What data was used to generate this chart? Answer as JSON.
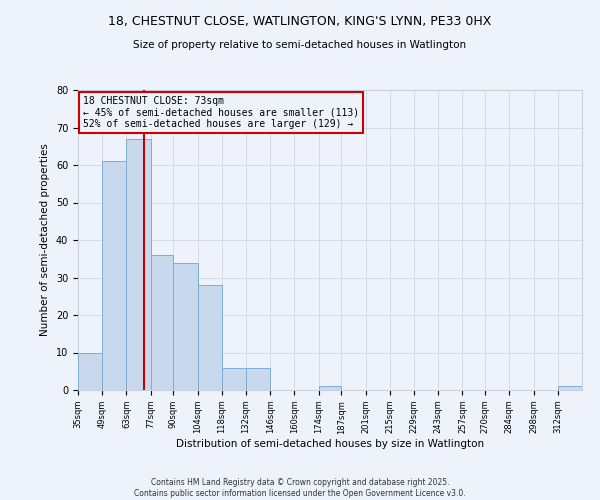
{
  "title1": "18, CHESTNUT CLOSE, WATLINGTON, KING'S LYNN, PE33 0HX",
  "title2": "Size of property relative to semi-detached houses in Watlington",
  "xlabel": "Distribution of semi-detached houses by size in Watlington",
  "ylabel": "Number of semi-detached properties",
  "bin_labels": [
    "35sqm",
    "49sqm",
    "63sqm",
    "77sqm",
    "90sqm",
    "104sqm",
    "118sqm",
    "132sqm",
    "146sqm",
    "160sqm",
    "174sqm",
    "187sqm",
    "201sqm",
    "215sqm",
    "229sqm",
    "243sqm",
    "257sqm",
    "270sqm",
    "284sqm",
    "298sqm",
    "312sqm"
  ],
  "bin_edges": [
    35,
    49,
    63,
    77,
    90,
    104,
    118,
    132,
    146,
    160,
    174,
    187,
    201,
    215,
    229,
    243,
    257,
    270,
    284,
    298,
    312
  ],
  "bar_heights": [
    10,
    61,
    67,
    36,
    34,
    28,
    6,
    6,
    0,
    0,
    1,
    0,
    0,
    0,
    0,
    0,
    0,
    0,
    0,
    0,
    1
  ],
  "bar_color": "#c8d9ed",
  "bar_edge_color": "#7bafd4",
  "property_line_x": 73,
  "property_line_color": "#cc0000",
  "annotation_title": "18 CHESTNUT CLOSE: 73sqm",
  "annotation_line1": "← 45% of semi-detached houses are smaller (113)",
  "annotation_line2": "52% of semi-detached houses are larger (129) →",
  "annotation_box_color": "#cc0000",
  "ylim": [
    0,
    80
  ],
  "yticks": [
    0,
    10,
    20,
    30,
    40,
    50,
    60,
    70,
    80
  ],
  "background_color": "#eef2fb",
  "footer1": "Contains HM Land Registry data © Crown copyright and database right 2025.",
  "footer2": "Contains public sector information licensed under the Open Government Licence v3.0."
}
